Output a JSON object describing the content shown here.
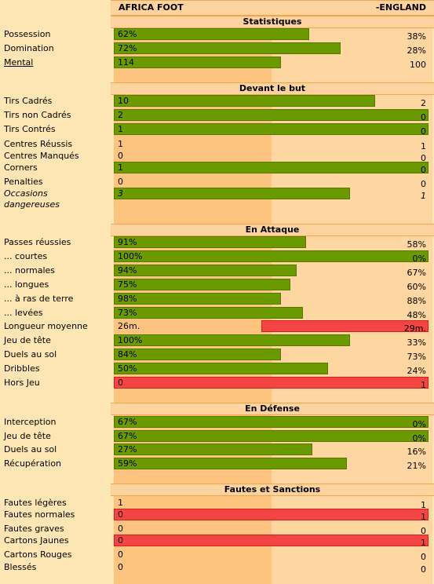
{
  "teams": {
    "home": "AFRICA FOOT",
    "away": "-ENGLAND"
  },
  "sections": {
    "stats": "Statistiques",
    "shots": "Devant le but",
    "attack": "En Attaque",
    "defense": "En Défense",
    "fouls": "Fautes et Sanctions"
  },
  "colors": {
    "home_bar": "#6b9a00",
    "away_bar": "#f44444",
    "home_col": "#fcc47f",
    "away_col": "#fdd6a1",
    "page": "#fde6b3"
  },
  "rows": {
    "possession": {
      "label": "Possession",
      "home": "62%",
      "away": "38%",
      "bar_share": 0.62,
      "bar_side": "home"
    },
    "domination": {
      "label": "Domination",
      "home": "72%",
      "away": "28%",
      "bar_share": 0.72,
      "bar_side": "home"
    },
    "mental": {
      "label": "Mental",
      "home": "114",
      "away": "100",
      "bar_share": 0.53,
      "bar_side": "home"
    },
    "tirs_cadres": {
      "label": "Tirs Cadrés",
      "home": "10",
      "away": "2",
      "bar_share": 0.83,
      "bar_side": "home"
    },
    "tirs_non": {
      "label": "Tirs non Cadrés",
      "home": "2",
      "away": "0",
      "bar_share": 1.0,
      "bar_side": "home"
    },
    "tirs_contres": {
      "label": "Tirs Contrés",
      "home": "1",
      "away": "0",
      "bar_share": 1.0,
      "bar_side": "home"
    },
    "centres_r": {
      "label": "Centres Réussis",
      "home": "1",
      "away": "1",
      "bar_share": 0,
      "bar_side": "none"
    },
    "centres_m": {
      "label": "Centres Manqués",
      "home": "0",
      "away": "0",
      "bar_share": 0,
      "bar_side": "none"
    },
    "corners": {
      "label": "Corners",
      "home": "1",
      "away": "0",
      "bar_share": 1.0,
      "bar_side": "home"
    },
    "penalties": {
      "label": "Penalties",
      "home": "0",
      "away": "0",
      "bar_share": 0,
      "bar_side": "none"
    },
    "occasions": {
      "label": "Occasions dangereuses",
      "home": "3",
      "away": "1",
      "bar_share": 0.75,
      "bar_side": "home"
    },
    "passes": {
      "label": "Passes réussies",
      "home": "91%",
      "away": "58%",
      "bar_share": 0.61,
      "bar_side": "home"
    },
    "courtes": {
      "label": "... courtes",
      "home": "100%",
      "away": "0%",
      "bar_share": 1.0,
      "bar_side": "home"
    },
    "normales": {
      "label": "... normales",
      "home": "94%",
      "away": "67%",
      "bar_share": 0.58,
      "bar_side": "home"
    },
    "longues": {
      "label": "... longues",
      "home": "75%",
      "away": "60%",
      "bar_share": 0.56,
      "bar_side": "home"
    },
    "ras": {
      "label": "... à ras de terre",
      "home": "98%",
      "away": "88%",
      "bar_share": 0.53,
      "bar_side": "home"
    },
    "levees": {
      "label": "... levées",
      "home": "73%",
      "away": "48%",
      "bar_share": 0.6,
      "bar_side": "home"
    },
    "longueur": {
      "label": "Longueur moyenne",
      "home": "26m.",
      "away": "29m.",
      "bar_share": 0.53,
      "bar_side": "away"
    },
    "tete_att": {
      "label": "Jeu de tête",
      "home": "100%",
      "away": "33%",
      "bar_share": 0.75,
      "bar_side": "home"
    },
    "duels_att": {
      "label": "Duels au sol",
      "home": "84%",
      "away": "73%",
      "bar_share": 0.53,
      "bar_side": "home"
    },
    "dribbles": {
      "label": "Dribbles",
      "home": "50%",
      "away": "24%",
      "bar_share": 0.68,
      "bar_side": "home"
    },
    "horsjeu": {
      "label": "Hors Jeu",
      "home": "0",
      "away": "1",
      "bar_share": 1.0,
      "bar_side": "away"
    },
    "interception": {
      "label": "Interception",
      "home": "67%",
      "away": "0%",
      "bar_share": 1.0,
      "bar_side": "home"
    },
    "tete_def": {
      "label": "Jeu de tête",
      "home": "67%",
      "away": "0%",
      "bar_share": 1.0,
      "bar_side": "home"
    },
    "duels_def": {
      "label": "Duels au sol",
      "home": "27%",
      "away": "16%",
      "bar_share": 0.63,
      "bar_side": "home"
    },
    "recuperation": {
      "label": "Récupération",
      "home": "59%",
      "away": "21%",
      "bar_share": 0.74,
      "bar_side": "home"
    },
    "fautes_l": {
      "label": "Fautes légères",
      "home": "1",
      "away": "1",
      "bar_share": 0,
      "bar_side": "none"
    },
    "fautes_n": {
      "label": "Fautes normales",
      "home": "0",
      "away": "1",
      "bar_share": 1.0,
      "bar_side": "away"
    },
    "fautes_g": {
      "label": "Fautes graves",
      "home": "0",
      "away": "0",
      "bar_share": 0,
      "bar_side": "none"
    },
    "jaunes": {
      "label": "Cartons Jaunes",
      "home": "0",
      "away": "1",
      "bar_share": 1.0,
      "bar_side": "away"
    },
    "rouges": {
      "label": "Cartons Rouges",
      "home": "0",
      "away": "0",
      "bar_share": 0,
      "bar_side": "none"
    },
    "blesses": {
      "label": "Blessés",
      "home": "0",
      "away": "0",
      "bar_share": 0,
      "bar_side": "none"
    }
  }
}
